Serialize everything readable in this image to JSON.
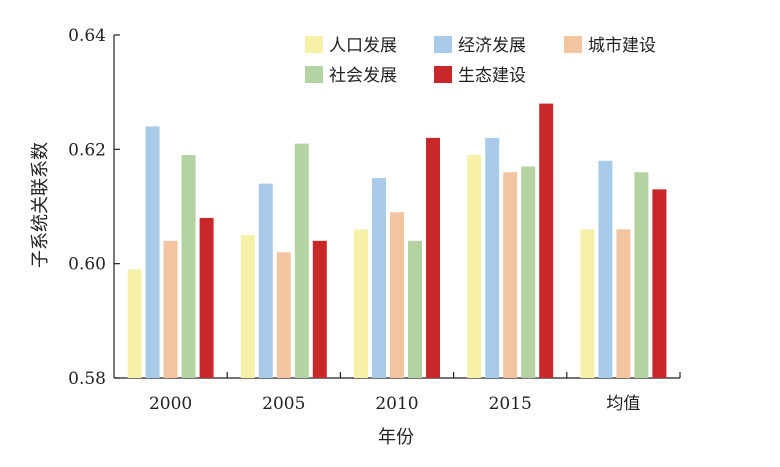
{
  "chart_data": {
    "type": "bar",
    "xlabel": "年份",
    "ylabel": "子系统关联系数",
    "ylim": [
      0.58,
      0.64
    ],
    "yticks": [
      "0.58",
      "0.60",
      "0.62",
      "0.64"
    ],
    "ytick_values": [
      0.58,
      0.6,
      0.62,
      0.64
    ],
    "categories": [
      "2000",
      "2005",
      "2010",
      "2015",
      "均值"
    ],
    "grid": false,
    "legend_position": "top-right",
    "series": [
      {
        "name": "人口发展",
        "color": "#F7F0A8",
        "values": [
          0.599,
          0.605,
          0.606,
          0.619,
          0.606
        ]
      },
      {
        "name": "经济发展",
        "color": "#A9CBEA",
        "values": [
          0.624,
          0.614,
          0.615,
          0.622,
          0.618
        ]
      },
      {
        "name": "城市建设",
        "color": "#F3C4A0",
        "values": [
          0.604,
          0.602,
          0.609,
          0.616,
          0.606
        ]
      },
      {
        "name": "社会发展",
        "color": "#B3D3A3",
        "values": [
          0.619,
          0.621,
          0.604,
          0.617,
          0.616
        ]
      },
      {
        "name": "生态建设",
        "color": "#C8282A",
        "values": [
          0.608,
          0.604,
          0.622,
          0.628,
          0.613
        ]
      }
    ]
  }
}
